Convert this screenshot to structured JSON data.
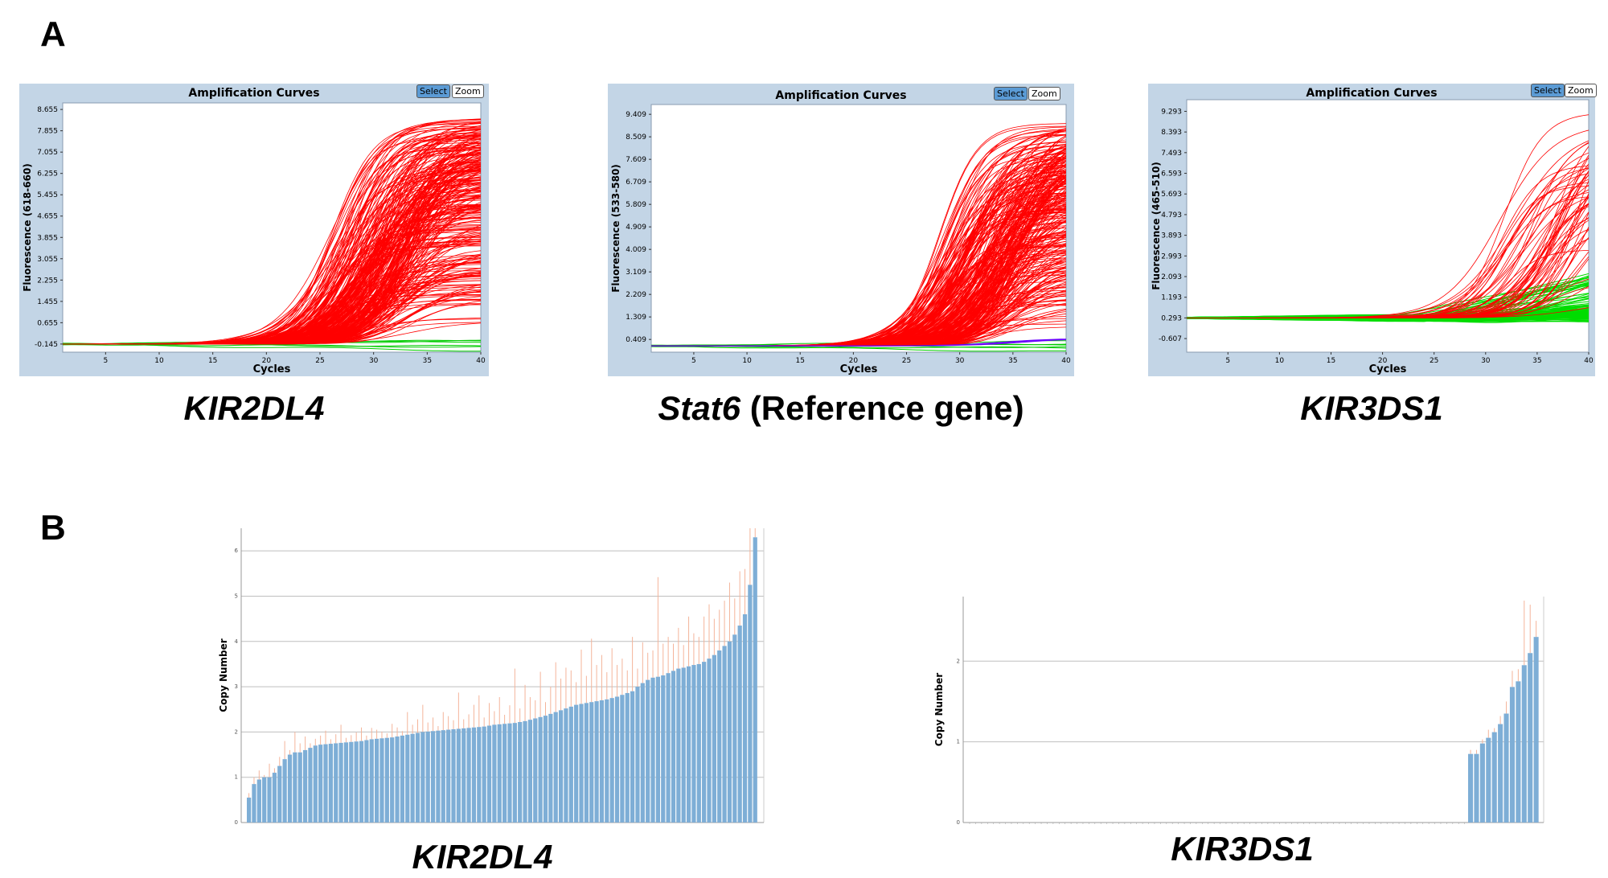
{
  "panels": {
    "a": "A",
    "b": "B"
  },
  "buttons": {
    "select": "Select",
    "zoom": "Zoom"
  },
  "chart_data": [
    {
      "type": "line",
      "title": "Amplification Curves",
      "xlabel": "Cycles",
      "ylabel": "Fluorescence (618-660)",
      "xlim": [
        1,
        40
      ],
      "x_ticks": [
        5,
        10,
        15,
        20,
        25,
        30,
        35,
        40
      ],
      "y_ticks": [
        "-0.145",
        "0.655",
        "1.455",
        "2.255",
        "3.055",
        "3.855",
        "4.655",
        "5.455",
        "6.255",
        "7.055",
        "7.855",
        "8.655"
      ],
      "y_tick_values": [
        -0.145,
        0.655,
        1.455,
        2.255,
        3.055,
        3.855,
        4.655,
        5.455,
        6.255,
        7.055,
        7.855,
        8.655
      ],
      "ylim": [
        -0.45,
        8.9
      ],
      "baseline": -0.145,
      "curve_onset_range": [
        22,
        30
      ],
      "curve_plateau_range": [
        0.7,
        8.5
      ],
      "curve_count_red": 300,
      "curve_count_green": 6,
      "colors": {
        "positive": "#ff0000",
        "negative": "#00cc00"
      },
      "caption_italic": "KIR2DL4",
      "caption_rest": ""
    },
    {
      "type": "line",
      "title": "Amplification Curves",
      "xlabel": "Cycles",
      "ylabel": "Fluorescence (533-580)",
      "xlim": [
        1,
        40
      ],
      "x_ticks": [
        5,
        10,
        15,
        20,
        25,
        30,
        35,
        40
      ],
      "y_ticks": [
        "0.409",
        "1.309",
        "2.209",
        "3.109",
        "4.009",
        "4.909",
        "5.809",
        "6.709",
        "7.609",
        "8.509",
        "9.409"
      ],
      "y_tick_values": [
        0.409,
        1.309,
        2.209,
        3.109,
        4.009,
        4.909,
        5.809,
        6.709,
        7.609,
        8.509,
        9.409
      ],
      "ylim": [
        -0.1,
        9.8
      ],
      "baseline": 0.15,
      "curve_onset_range": [
        24,
        32
      ],
      "curve_plateau_range": [
        0.5,
        9.0
      ],
      "curve_count_red": 300,
      "curve_count_green": 6,
      "colors": {
        "positive": "#ff0000",
        "negative": "#00cc00",
        "extra": "#6a00ff"
      },
      "caption_italic": "Stat6",
      "caption_rest": " (Reference gene)"
    },
    {
      "type": "line",
      "title": "Amplification Curves",
      "xlabel": "Cycles",
      "ylabel": "Fluorescence (465-510)",
      "xlim": [
        1,
        40
      ],
      "x_ticks": [
        5,
        10,
        15,
        20,
        25,
        30,
        35,
        40
      ],
      "y_ticks": [
        "-0.607",
        "0.293",
        "1.193",
        "2.093",
        "2.993",
        "3.893",
        "4.793",
        "5.693",
        "6.593",
        "7.493",
        "8.393",
        "9.293"
      ],
      "y_tick_values": [
        -0.607,
        0.293,
        1.193,
        2.093,
        2.993,
        3.893,
        4.793,
        5.693,
        6.593,
        7.493,
        8.393,
        9.293
      ],
      "ylim": [
        -1.2,
        9.8
      ],
      "baseline": 0.293,
      "curve_onset_range": [
        27,
        36
      ],
      "curve_plateau_range": [
        0.5,
        9.0
      ],
      "curve_count_red": 60,
      "curve_count_green": 120,
      "colors": {
        "positive": "#ff0000",
        "negative": "#00dd00"
      },
      "caption_italic": "KIR3DS1",
      "caption_rest": ""
    },
    {
      "type": "bar",
      "ylabel": "Copy Number",
      "ylim": [
        0,
        6.5
      ],
      "y_ticks": [
        0,
        1,
        2,
        3,
        4,
        5,
        6
      ],
      "values": [
        0.55,
        0.85,
        0.95,
        1.0,
        1.0,
        1.1,
        1.25,
        1.4,
        1.5,
        1.55,
        1.55,
        1.6,
        1.65,
        1.7,
        1.72,
        1.73,
        1.74,
        1.75,
        1.76,
        1.77,
        1.78,
        1.79,
        1.8,
        1.82,
        1.84,
        1.85,
        1.86,
        1.87,
        1.88,
        1.9,
        1.92,
        1.94,
        1.96,
        1.98,
        2.0,
        2.01,
        2.02,
        2.03,
        2.04,
        2.05,
        2.06,
        2.07,
        2.08,
        2.09,
        2.1,
        2.11,
        2.12,
        2.14,
        2.16,
        2.17,
        2.18,
        2.19,
        2.2,
        2.22,
        2.24,
        2.27,
        2.3,
        2.33,
        2.36,
        2.4,
        2.44,
        2.48,
        2.52,
        2.56,
        2.6,
        2.62,
        2.64,
        2.66,
        2.68,
        2.7,
        2.72,
        2.75,
        2.78,
        2.82,
        2.86,
        2.9,
        3.0,
        3.08,
        3.15,
        3.2,
        3.22,
        3.25,
        3.3,
        3.35,
        3.4,
        3.42,
        3.45,
        3.48,
        3.5,
        3.55,
        3.62,
        3.7,
        3.8,
        3.9,
        4.0,
        4.15,
        4.35,
        4.6,
        5.25,
        6.3
      ],
      "errors": [
        0.1,
        0.15,
        0.2,
        0.05,
        0.3,
        0.1,
        0.2,
        0.4,
        0.1,
        0.45,
        0.2,
        0.3,
        0.1,
        0.15,
        0.2,
        0.3,
        0.1,
        0.2,
        0.4,
        0.1,
        0.15,
        0.2,
        0.3,
        0.1,
        0.25,
        0.2,
        0.15,
        0.1,
        0.3,
        0.2,
        0.1,
        0.5,
        0.2,
        0.3,
        0.6,
        0.2,
        0.3,
        0.1,
        0.4,
        0.3,
        0.2,
        0.8,
        0.2,
        0.3,
        0.5,
        0.7,
        0.2,
        0.5,
        0.3,
        0.6,
        0.2,
        0.4,
        1.2,
        0.3,
        0.8,
        0.5,
        0.4,
        1.0,
        0.3,
        0.6,
        1.1,
        0.7,
        0.9,
        0.8,
        0.5,
        1.2,
        0.6,
        1.4,
        0.8,
        1.0,
        0.6,
        1.1,
        0.7,
        0.8,
        0.5,
        1.2,
        0.4,
        0.9,
        0.6,
        0.6,
        2.2,
        0.7,
        0.8,
        0.6,
        0.9,
        0.5,
        1.1,
        0.7,
        0.6,
        1.0,
        1.2,
        0.8,
        0.9,
        1.0,
        1.3,
        0.8,
        1.2,
        1.0,
        1.3,
        0.55
      ],
      "colors": {
        "bar": "#7eaed6",
        "error": "#f4b49a",
        "grid": "#bfbfbf"
      },
      "caption": "KIR2DL4"
    },
    {
      "type": "bar",
      "ylabel": "Copy Number",
      "ylim": [
        0,
        2.8
      ],
      "y_ticks": [
        0,
        1,
        2
      ],
      "zero_count": 84,
      "values": [
        0.85,
        0.85,
        0.98,
        1.05,
        1.12,
        1.22,
        1.35,
        1.68,
        1.75,
        1.95,
        2.1,
        2.3
      ],
      "errors": [
        0.05,
        0.05,
        0.05,
        0.1,
        0.05,
        0.1,
        0.15,
        0.2,
        0.15,
        0.8,
        0.6,
        0.2
      ],
      "colors": {
        "bar": "#7eaed6",
        "error": "#f4b49a",
        "grid": "#bfbfbf"
      },
      "caption": "KIR3DS1"
    }
  ]
}
